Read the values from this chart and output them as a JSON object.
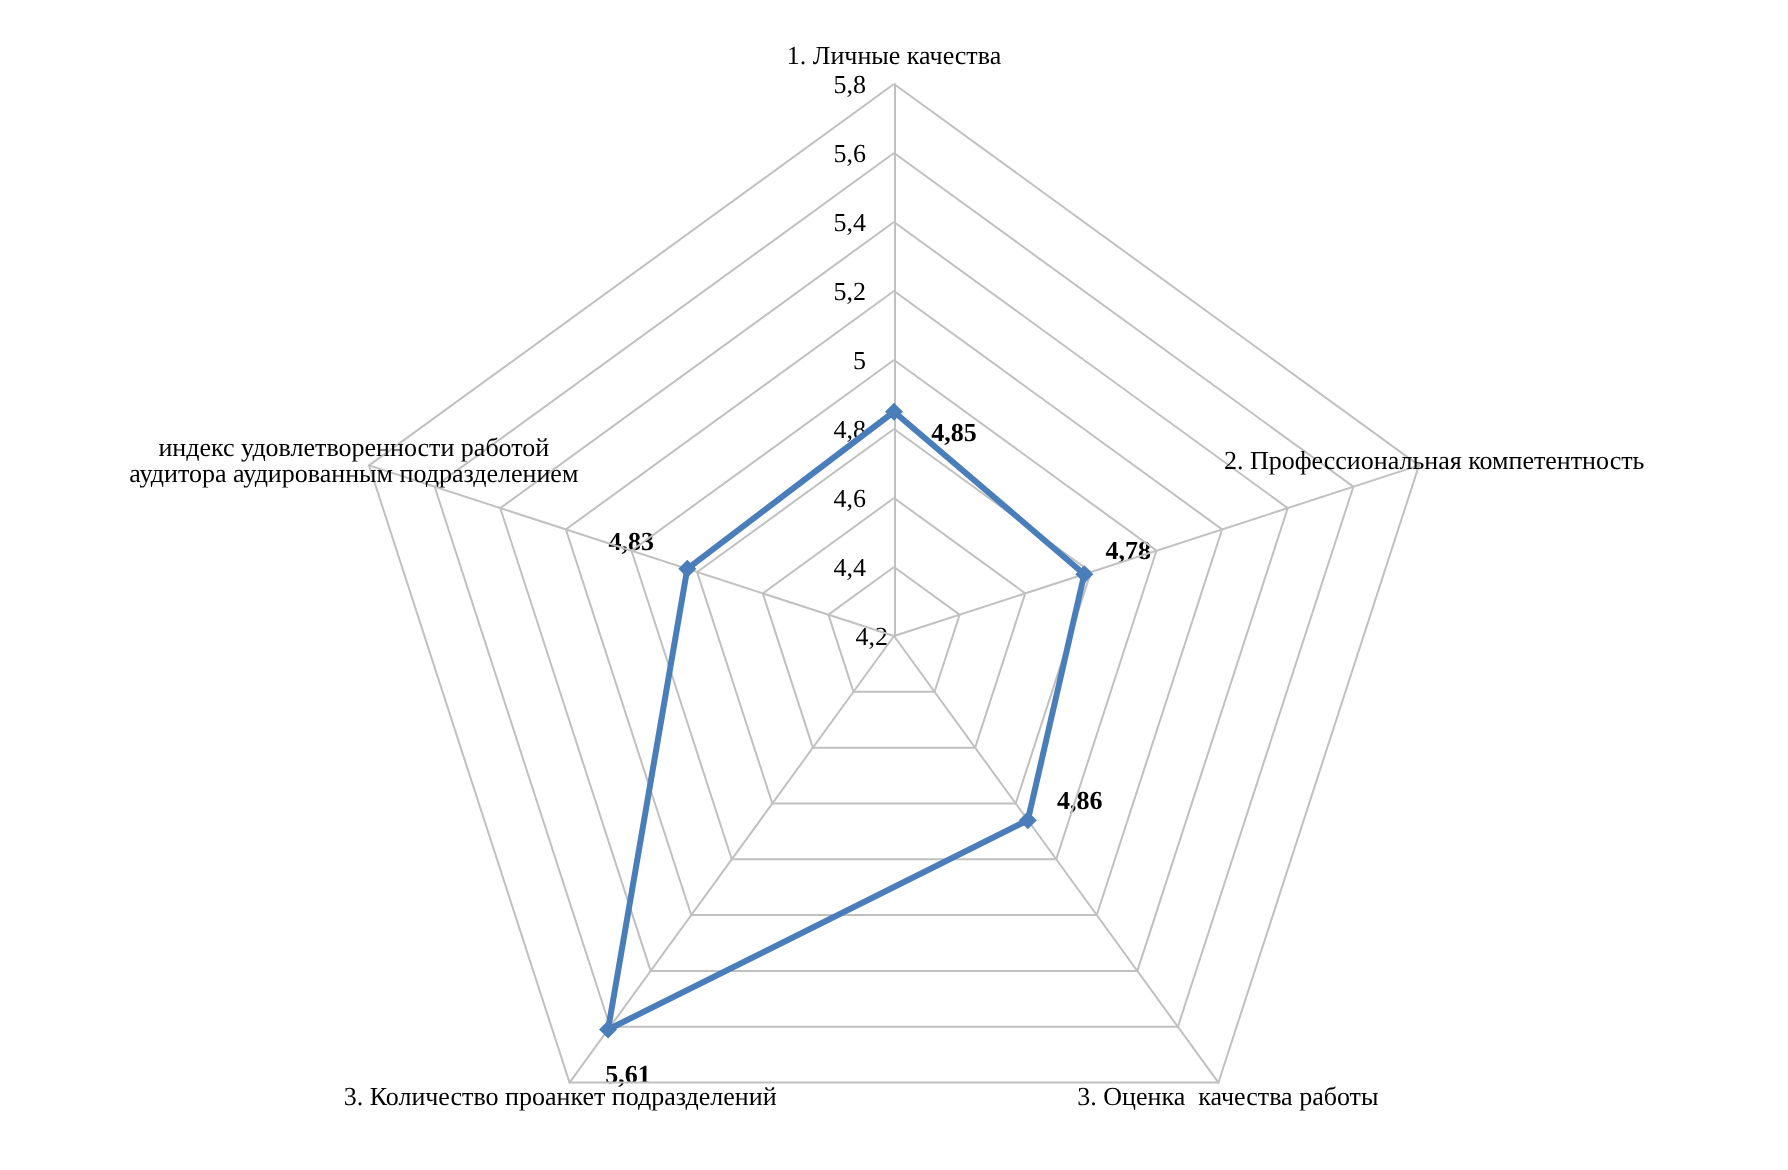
{
  "chart_data": {
    "type": "radar",
    "categories": [
      "1. Личные качества",
      "2. Профессиональная компетентность",
      "3. Оценка  качества работы",
      "3. Количество проанкет подразделений",
      "индекс удовлетворенности работой аудитора аудированным подразделением"
    ],
    "series": [
      {
        "color": "#4a7ebb",
        "values": [
          4.85,
          4.78,
          4.86,
          5.61,
          4.83
        ],
        "value_labels": [
          "4,85",
          "4,78",
          "4,86",
          "5,61",
          "4,83"
        ]
      }
    ],
    "ylim": [
      4.2,
      5.8
    ],
    "yticks": [
      {
        "value": 4.2,
        "label": "4,2"
      },
      {
        "value": 4.4,
        "label": "4,4"
      },
      {
        "value": 4.6,
        "label": "4,6"
      },
      {
        "value": 4.8,
        "label": "4,8"
      },
      {
        "value": 5,
        "label": "5"
      },
      {
        "value": 5.2,
        "label": "5,2"
      },
      {
        "value": 5.4,
        "label": "5,4"
      },
      {
        "value": 5.6,
        "label": "5,6"
      },
      {
        "value": 5.8,
        "label": "5,8"
      }
    ],
    "marker": "diamond"
  }
}
